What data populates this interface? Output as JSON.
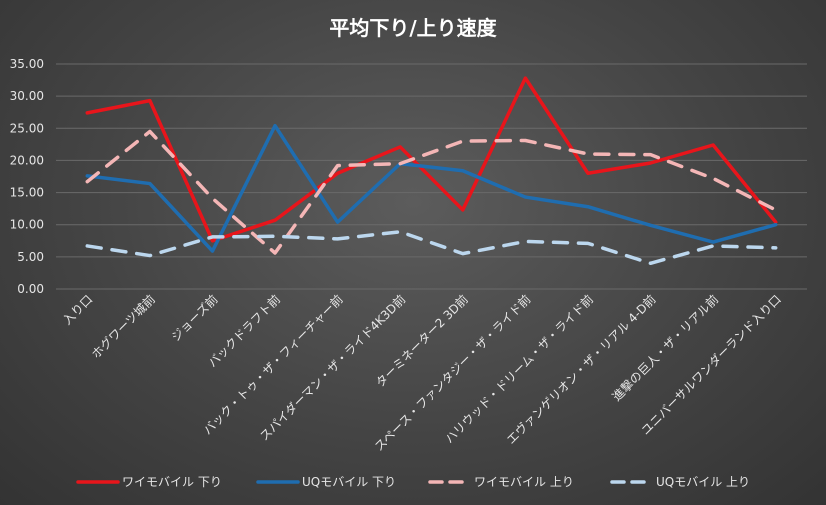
{
  "chart_data": {
    "type": "line",
    "title": "平均下り/上り速度",
    "categories": [
      "入り口",
      "ホグワーツ城前",
      "ジョーズ前",
      "バックドラフト前",
      "バック・トゥ・ザ・フィーチャー前",
      "スパイダーマン・ザ・ライド4K3D前",
      "ターミネーター2 3D前",
      "スペース・ファンタジー・ザ・ライド前",
      "ハリウッド・ドリーム・ザ・ライド前",
      "エヴァンゲリオン・ザ・リアル 4-D前",
      "進撃の巨人・ザ・リアル前",
      "ユニバーサルワンダーランド入り口"
    ],
    "yticks": [
      "0.00",
      "5.00",
      "10.00",
      "15.00",
      "20.00",
      "25.00",
      "30.00",
      "35.00"
    ],
    "ylim": [
      0,
      35
    ],
    "grid": true,
    "legend_position": "bottom",
    "series": [
      {
        "name": "ワイモバイル 下り",
        "color": "#e8151b",
        "dash": false,
        "values": [
          27.4,
          29.3,
          7.5,
          10.7,
          18.0,
          22.1,
          12.3,
          32.8,
          18.0,
          19.6,
          22.4,
          10.4
        ]
      },
      {
        "name": "UQモバイル 下り",
        "color": "#1f6db0",
        "dash": false,
        "values": [
          17.6,
          16.4,
          5.9,
          25.4,
          10.4,
          19.5,
          18.4,
          14.3,
          12.8,
          9.9,
          7.3,
          10.0
        ]
      },
      {
        "name": "ワイモバイル 上り",
        "color": "#f4b6b6",
        "dash": true,
        "values": [
          16.7,
          24.5,
          14.1,
          5.6,
          19.2,
          19.5,
          23.0,
          23.1,
          21.0,
          20.9,
          17.2,
          12.3
        ]
      },
      {
        "name": "UQモバイル 上り",
        "color": "#bcd7ee",
        "dash": true,
        "values": [
          6.7,
          5.2,
          8.1,
          8.2,
          7.8,
          8.9,
          5.5,
          7.4,
          7.1,
          4.0,
          6.7,
          6.4
        ]
      }
    ]
  }
}
